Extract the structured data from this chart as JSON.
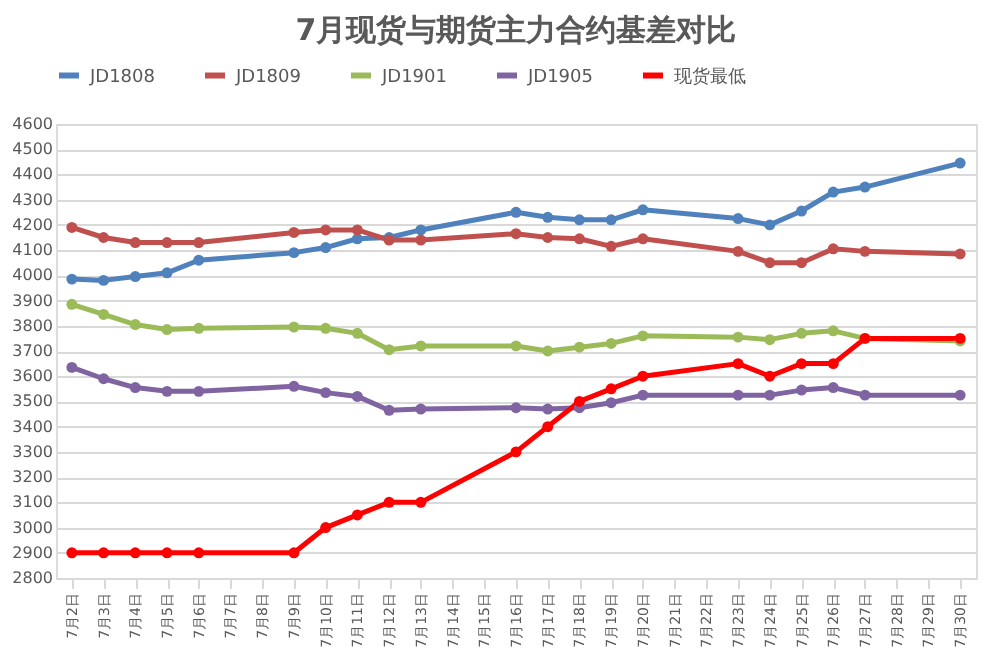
{
  "chart_data": {
    "type": "line",
    "title": "7月现货与期货主力合约基差对比",
    "categories": [
      "7月2日",
      "7月3日",
      "7月4日",
      "7月5日",
      "7月6日",
      "7月7日",
      "7月8日",
      "7月9日",
      "7月10日",
      "7月11日",
      "7月12日",
      "7月13日",
      "7月14日",
      "7月15日",
      "7月16日",
      "7月17日",
      "7月18日",
      "7月19日",
      "7月20日",
      "7月21日",
      "7月22日",
      "7月23日",
      "7月24日",
      "7月25日",
      "7月26日",
      "7月27日",
      "7月28日",
      "7月29日",
      "7月30日"
    ],
    "series": [
      {
        "name": "JD1808",
        "color": "#4f81bd",
        "values": [
          3985,
          3980,
          3995,
          4010,
          4060,
          null,
          null,
          4090,
          4110,
          4145,
          4150,
          4180,
          null,
          null,
          4250,
          4230,
          4220,
          4220,
          4260,
          null,
          null,
          4225,
          4200,
          4255,
          4330,
          4350,
          null,
          null,
          4445
        ]
      },
      {
        "name": "JD1809",
        "color": "#c0504d",
        "values": [
          4190,
          4150,
          4130,
          4130,
          4130,
          null,
          null,
          4170,
          4180,
          4180,
          4140,
          4140,
          null,
          null,
          4165,
          4150,
          4145,
          4115,
          4145,
          null,
          null,
          4095,
          4050,
          4050,
          4105,
          4095,
          null,
          null,
          4085
        ]
      },
      {
        "name": "JD1901",
        "color": "#9bbb59",
        "values": [
          3885,
          3845,
          3805,
          3785,
          3790,
          null,
          null,
          3795,
          3790,
          3770,
          3705,
          3720,
          null,
          null,
          3720,
          3700,
          3715,
          3730,
          3760,
          null,
          null,
          3755,
          3745,
          3770,
          3780,
          3750,
          null,
          null,
          3740
        ]
      },
      {
        "name": "JD1905",
        "color": "#8064a2",
        "values": [
          3635,
          3590,
          3555,
          3540,
          3540,
          null,
          null,
          3560,
          3535,
          3520,
          3465,
          3470,
          null,
          null,
          3475,
          3470,
          3475,
          3495,
          3525,
          null,
          null,
          3525,
          3525,
          3545,
          3555,
          3525,
          null,
          null,
          3525
        ]
      },
      {
        "name": "现货最低",
        "color": "#ff0000",
        "values": [
          2900,
          2900,
          2900,
          2900,
          2900,
          null,
          null,
          2900,
          3000,
          3050,
          3100,
          3100,
          null,
          null,
          3300,
          3400,
          3500,
          3550,
          3600,
          null,
          null,
          3650,
          3600,
          3650,
          3650,
          3750,
          null,
          null,
          3750
        ]
      }
    ],
    "ylim": [
      2800,
      4600
    ],
    "yticks": [
      2800,
      2900,
      3000,
      3100,
      3200,
      3300,
      3400,
      3500,
      3600,
      3700,
      3800,
      3900,
      4000,
      4100,
      4200,
      4300,
      4400,
      4500,
      4600
    ],
    "grid": "y",
    "legend": "top",
    "marker": "circle",
    "line_style": "solid"
  }
}
